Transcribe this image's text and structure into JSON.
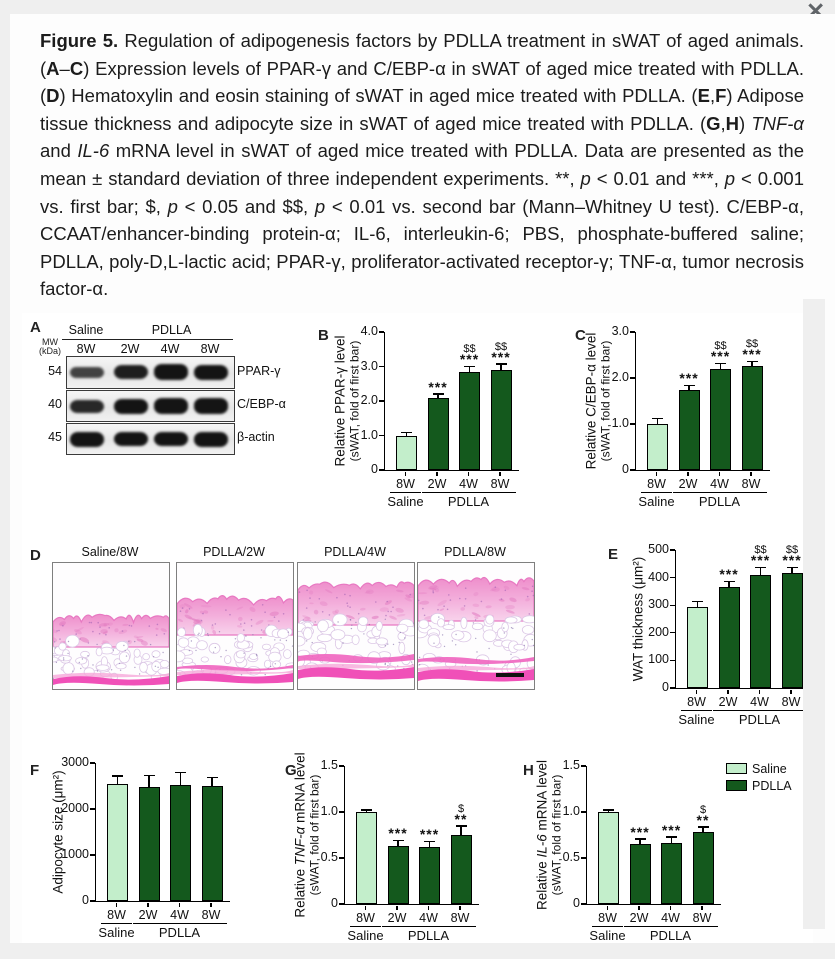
{
  "window": {
    "close_icon": "✕"
  },
  "caption": {
    "segments": [
      {
        "t": "Figure 5. ",
        "b": true
      },
      {
        "t": "Regulation of adipogenesis factors by PDLLA treatment in sWAT of aged animals. ("
      },
      {
        "t": "A",
        "b": true
      },
      {
        "t": "–"
      },
      {
        "t": "C",
        "b": true
      },
      {
        "t": ") Expression levels of PPAR-γ and C/EBP-α in sWAT of aged mice treated with PDLLA. ("
      },
      {
        "t": "D",
        "b": true
      },
      {
        "t": ") Hematoxylin and eosin staining of sWAT in aged mice treated with PDLLA. ("
      },
      {
        "t": "E",
        "b": true
      },
      {
        "t": ","
      },
      {
        "t": "F",
        "b": true
      },
      {
        "t": ") Adipose tissue thickness and adipocyte size in sWAT of aged mice treated with PDLLA. ("
      },
      {
        "t": "G",
        "b": true
      },
      {
        "t": ","
      },
      {
        "t": "H",
        "b": true
      },
      {
        "t": ") "
      },
      {
        "t": "TNF-α",
        "i": true
      },
      {
        "t": " and "
      },
      {
        "t": "IL-6",
        "i": true
      },
      {
        "t": " mRNA level in sWAT of aged mice treated with PDLLA. Data are presented as the mean ± standard deviation of three independent experiments. **, "
      },
      {
        "t": "p",
        "i": true
      },
      {
        "t": " < 0.01 and ***, "
      },
      {
        "t": "p",
        "i": true
      },
      {
        "t": " < 0.001 vs. first bar; $, "
      },
      {
        "t": "p",
        "i": true
      },
      {
        "t": " < 0.05 and $$, "
      },
      {
        "t": "p",
        "i": true
      },
      {
        "t": " < 0.01 vs. second bar (Mann–Whitney U test). C/EBP-α, CCAAT/enhancer-binding protein-α; IL-6, interleukin-6; PBS, phosphate-buffered saline; PDLLA, poly-D,L-lactic acid; PPAR-γ, proliferator-activated receptor-γ; TNF-α, tumor necrosis factor-α."
      }
    ]
  },
  "panelA": {
    "label": "A",
    "mw_line1": "MW",
    "mw_line2": "(kDa)",
    "group1": "Saline",
    "group2": "PDLLA",
    "columns": [
      "8W",
      "2W",
      "4W",
      "8W"
    ],
    "rows": [
      {
        "mw": "54",
        "protein": "PPAR-γ"
      },
      {
        "mw": "40",
        "protein": "C/EBP-α"
      },
      {
        "mw": "45",
        "protein": "β-actin"
      }
    ]
  },
  "panelD": {
    "label": "D",
    "image_labels": [
      "Saline/8W",
      "PDLLA/2W",
      "PDLLA/4W",
      "PDLLA/8W"
    ]
  },
  "legend": {
    "items": [
      {
        "label": "Saline",
        "color": "#c3eecb"
      },
      {
        "label": "PDLLA",
        "color": "#14591d"
      }
    ]
  },
  "colors": {
    "saline_bar": "#c3eecb",
    "pdlla_bar": "#14591d",
    "axis": "#000000"
  },
  "chart_data": [
    {
      "panel": "B",
      "type": "bar",
      "categories": [
        "8W",
        "2W",
        "4W",
        "8W"
      ],
      "group_labels": [
        "Saline",
        "PDLLA"
      ],
      "values": [
        1.0,
        2.1,
        2.85,
        2.9
      ],
      "errors": [
        0.07,
        0.08,
        0.13,
        0.15
      ],
      "sig_star": [
        "",
        "***",
        "***",
        "***"
      ],
      "sig_dollar": [
        "",
        "",
        "$$",
        "$$"
      ],
      "ylabel_parts": [
        {
          "t": "Relative PPAR-γ level"
        }
      ],
      "ylabel2": "(sWAT, fold of first bar)",
      "ytick_labels": [
        "0",
        "1.0",
        "2.0",
        "3.0",
        "4.0"
      ],
      "yticks": [
        0,
        1,
        2,
        3,
        4
      ],
      "ylim": [
        0,
        4
      ],
      "bar_colors": [
        "#c3eecb",
        "#14591d",
        "#14591d",
        "#14591d"
      ]
    },
    {
      "panel": "C",
      "type": "bar",
      "categories": [
        "8W",
        "2W",
        "4W",
        "8W"
      ],
      "group_labels": [
        "Saline",
        "PDLLA"
      ],
      "values": [
        1.0,
        1.75,
        2.2,
        2.27
      ],
      "errors": [
        0.1,
        0.07,
        0.1,
        0.08
      ],
      "sig_star": [
        "",
        "***",
        "***",
        "***"
      ],
      "sig_dollar": [
        "",
        "",
        "$$",
        "$$"
      ],
      "ylabel_parts": [
        {
          "t": "Relative C/EBP-α level"
        }
      ],
      "ylabel2": "(sWAT, fold of first bar)",
      "ytick_labels": [
        "0",
        "1.0",
        "2.0",
        "3.0"
      ],
      "yticks": [
        0,
        1,
        2,
        3
      ],
      "ylim": [
        0,
        3
      ],
      "bar_colors": [
        "#c3eecb",
        "#14591d",
        "#14591d",
        "#14591d"
      ]
    },
    {
      "panel": "E",
      "type": "bar",
      "categories": [
        "8W",
        "2W",
        "4W",
        "8W"
      ],
      "group_labels": [
        "Saline",
        "PDLLA"
      ],
      "values": [
        295,
        365,
        410,
        415
      ],
      "errors": [
        15,
        18,
        25,
        20
      ],
      "sig_star": [
        "",
        "***",
        "***",
        "***"
      ],
      "sig_dollar": [
        "",
        "",
        "$$",
        "$$"
      ],
      "ylabel_parts": [
        {
          "t": "WAT thickness (μm²)"
        }
      ],
      "ylabel2": "",
      "ytick_labels": [
        "0",
        "100",
        "200",
        "300",
        "400",
        "500"
      ],
      "yticks": [
        0,
        100,
        200,
        300,
        400,
        500
      ],
      "ylim": [
        0,
        500
      ],
      "bar_colors": [
        "#c3eecb",
        "#14591d",
        "#14591d",
        "#14591d"
      ]
    },
    {
      "panel": "F",
      "type": "bar",
      "categories": [
        "8W",
        "2W",
        "4W",
        "8W"
      ],
      "group_labels": [
        "Saline",
        "PDLLA"
      ],
      "values": [
        2550,
        2480,
        2530,
        2500
      ],
      "errors": [
        150,
        240,
        250,
        170
      ],
      "sig_star": [
        "",
        "",
        "",
        ""
      ],
      "sig_dollar": [
        "",
        "",
        "",
        ""
      ],
      "ylabel_parts": [
        {
          "t": "Adipocyte size (μm²)"
        }
      ],
      "ylabel2": "",
      "ytick_labels": [
        "0",
        "1000",
        "2000",
        "3000"
      ],
      "yticks": [
        0,
        1000,
        2000,
        3000
      ],
      "ylim": [
        0,
        3000
      ],
      "bar_colors": [
        "#c3eecb",
        "#14591d",
        "#14591d",
        "#14591d"
      ]
    },
    {
      "panel": "G",
      "type": "bar",
      "categories": [
        "8W",
        "2W",
        "4W",
        "8W"
      ],
      "group_labels": [
        "Saline",
        "PDLLA"
      ],
      "values": [
        1.0,
        0.63,
        0.62,
        0.75
      ],
      "errors": [
        0.015,
        0.05,
        0.05,
        0.09
      ],
      "sig_star": [
        "",
        "***",
        "***",
        "**"
      ],
      "sig_dollar": [
        "",
        "",
        "",
        "$"
      ],
      "ylabel_parts": [
        {
          "t": "Relative "
        },
        {
          "t": "TNF-α",
          "i": true
        },
        {
          "t": " mRNA level"
        }
      ],
      "ylabel2": "(sWAT, fold of first bar)",
      "ytick_labels": [
        "0",
        "0.5",
        "1.0",
        "1.5"
      ],
      "yticks": [
        0,
        0.5,
        1.0,
        1.5
      ],
      "ylim": [
        0,
        1.5
      ],
      "bar_colors": [
        "#c3eecb",
        "#14591d",
        "#14591d",
        "#14591d"
      ]
    },
    {
      "panel": "H",
      "type": "bar",
      "categories": [
        "8W",
        "2W",
        "4W",
        "8W"
      ],
      "group_labels": [
        "Saline",
        "PDLLA"
      ],
      "values": [
        1.0,
        0.65,
        0.66,
        0.78
      ],
      "errors": [
        0.015,
        0.05,
        0.06,
        0.05
      ],
      "sig_star": [
        "",
        "***",
        "***",
        "**"
      ],
      "sig_dollar": [
        "",
        "",
        "",
        "$"
      ],
      "ylabel_parts": [
        {
          "t": "Relative "
        },
        {
          "t": "IL-6",
          "i": true
        },
        {
          "t": " mRNA level"
        }
      ],
      "ylabel2": "(sWAT, fold of first bar)",
      "ytick_labels": [
        "0",
        "0.5",
        "1.0",
        "1.5"
      ],
      "yticks": [
        0,
        0.5,
        1.0,
        1.5
      ],
      "ylim": [
        0,
        1.5
      ],
      "bar_colors": [
        "#c3eecb",
        "#14591d",
        "#14591d",
        "#14591d"
      ]
    }
  ]
}
